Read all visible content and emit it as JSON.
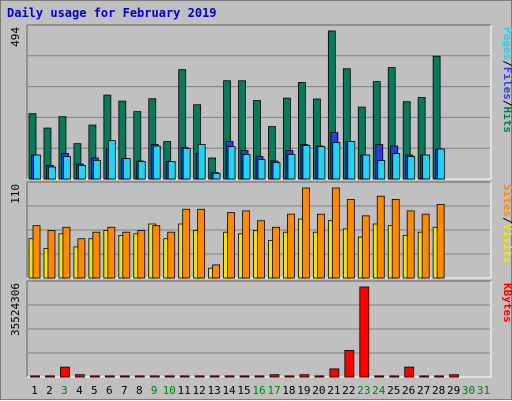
{
  "title": "Daily usage for February 2019",
  "colors": {
    "hits": "#087a5c",
    "files": "#2a3ce6",
    "pages": "#22d4f2",
    "visits": "#f2e600",
    "sites": "#ff8a00",
    "kbytes": "#ff0000",
    "weekend_label": "#008000",
    "weekday_label": "#000000"
  },
  "chart_data": [
    {
      "type": "bar",
      "panel": "hits-files-pages",
      "ymax_label": "494",
      "ylim": [
        0,
        494
      ],
      "legend": [
        "Pages",
        "/",
        "Files",
        "/",
        "Hits"
      ],
      "categories": [
        "1",
        "2",
        "3",
        "4",
        "5",
        "6",
        "7",
        "8",
        "9",
        "10",
        "11",
        "12",
        "13",
        "14",
        "15",
        "16",
        "17",
        "18",
        "19",
        "20",
        "21",
        "22",
        "23",
        "24",
        "25",
        "26",
        "27",
        "28",
        "29",
        "30",
        "31"
      ],
      "series": [
        {
          "name": "Hits",
          "values": [
            218,
            170,
            208,
            118,
            180,
            280,
            260,
            225,
            268,
            125,
            365,
            248,
            70,
            328,
            328,
            262,
            175,
            270,
            322,
            267,
            494,
            368,
            240,
            325,
            372,
            258,
            272,
            410,
            0,
            0,
            0
          ]
        },
        {
          "name": "Files",
          "values": [
            80,
            45,
            85,
            50,
            70,
            100,
            68,
            60,
            115,
            58,
            105,
            85,
            22,
            125,
            95,
            75,
            60,
            95,
            115,
            110,
            155,
            125,
            80,
            115,
            110,
            80,
            80,
            100,
            0,
            0,
            0
          ]
        },
        {
          "name": "Pages",
          "values": [
            80,
            40,
            75,
            45,
            62,
            128,
            68,
            58,
            110,
            58,
            102,
            115,
            18,
            108,
            82,
            65,
            55,
            82,
            112,
            108,
            122,
            125,
            80,
            62,
            85,
            75,
            80,
            100,
            0,
            0,
            0
          ]
        }
      ]
    },
    {
      "type": "bar",
      "panel": "visits-sites",
      "ymax_label": "110",
      "ylim": [
        0,
        110
      ],
      "legend": [
        "Sites",
        "/",
        "Visits"
      ],
      "categories": [
        "1",
        "2",
        "3",
        "4",
        "5",
        "6",
        "7",
        "8",
        "9",
        "10",
        "11",
        "12",
        "13",
        "14",
        "15",
        "16",
        "17",
        "18",
        "19",
        "20",
        "21",
        "22",
        "23",
        "24",
        "25",
        "26",
        "27",
        "28",
        "29",
        "30",
        "31"
      ],
      "series": [
        {
          "name": "Visits",
          "values": [
            48,
            36,
            54,
            38,
            48,
            58,
            52,
            54,
            66,
            48,
            66,
            58,
            12,
            56,
            54,
            58,
            46,
            56,
            72,
            56,
            70,
            60,
            50,
            66,
            64,
            52,
            56,
            62,
            0,
            0,
            0
          ]
        },
        {
          "name": "Sites",
          "values": [
            64,
            58,
            62,
            48,
            56,
            62,
            56,
            58,
            64,
            56,
            84,
            84,
            16,
            80,
            82,
            70,
            62,
            78,
            110,
            78,
            110,
            96,
            76,
            100,
            96,
            82,
            78,
            90,
            0,
            0,
            0
          ]
        }
      ]
    },
    {
      "type": "bar",
      "panel": "kbytes",
      "ymax_label": "35524306",
      "ylim": [
        0,
        35524306
      ],
      "legend": [
        "KBytes"
      ],
      "categories": [
        "1",
        "2",
        "3",
        "4",
        "5",
        "6",
        "7",
        "8",
        "9",
        "10",
        "11",
        "12",
        "13",
        "14",
        "15",
        "16",
        "17",
        "18",
        "19",
        "20",
        "21",
        "22",
        "23",
        "24",
        "25",
        "26",
        "27",
        "28",
        "29",
        "30",
        "31"
      ],
      "series": [
        {
          "name": "KBytes",
          "values": [
            450000,
            450000,
            3900000,
            900000,
            450000,
            450000,
            450000,
            450000,
            450000,
            450000,
            450000,
            450000,
            450000,
            450000,
            450000,
            450000,
            900000,
            450000,
            900000,
            450000,
            3200000,
            10500000,
            35524306,
            450000,
            450000,
            3900000,
            450000,
            450000,
            900000,
            0,
            0
          ]
        }
      ]
    }
  ],
  "weekend_days": [
    "3",
    "9",
    "10",
    "16",
    "17",
    "23",
    "24",
    "30",
    "31"
  ]
}
